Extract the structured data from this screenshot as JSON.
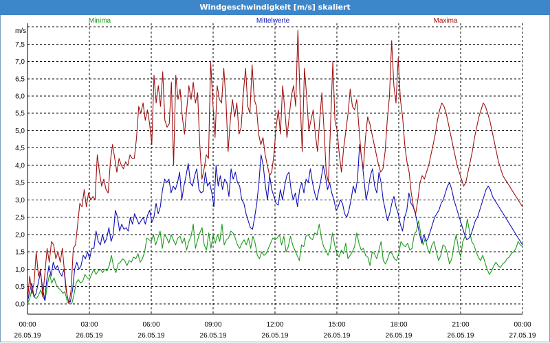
{
  "window": {
    "title": "Windgeschwindigkeit [m/s] skaliert"
  },
  "colors": {
    "minima": "#1a9a1a",
    "mittel": "#1010b8",
    "maxima": "#a01010",
    "titlebar": "#3d86c9"
  },
  "chart_data": {
    "type": "line",
    "title": "Windgeschwindigkeit [m/s] skaliert",
    "ylabel": "m/s",
    "xlabel": "",
    "ylim": [
      -0.3,
      8.1
    ],
    "y_ticks": [
      "0,0",
      "0,5",
      "1,0",
      "1,5",
      "2,0",
      "2,5",
      "3,0",
      "3,5",
      "4,0",
      "4,5",
      "5,0",
      "5,5",
      "6,0",
      "6,5",
      "7,0",
      "7,5"
    ],
    "x_range_hours": [
      0,
      24
    ],
    "x_ticks": [
      {
        "time": "00:00",
        "date": "26.05.19"
      },
      {
        "time": "03:00",
        "date": "26.05.19"
      },
      {
        "time": "06:00",
        "date": "26.05.19"
      },
      {
        "time": "09:00",
        "date": "26.05.19"
      },
      {
        "time": "12:00",
        "date": "26.05.19"
      },
      {
        "time": "15:00",
        "date": "26.05.19"
      },
      {
        "time": "18:00",
        "date": "26.05.19"
      },
      {
        "time": "21:00",
        "date": "26.05.19"
      },
      {
        "time": "00:00",
        "date": "27.05.19"
      }
    ],
    "grid": true,
    "legend_placement": "top",
    "series": [
      {
        "name": "Minima",
        "color": "#1a9a1a",
        "values": [
          0.0,
          0.15,
          0.4,
          0.2,
          0.15,
          0.25,
          0.4,
          0.2,
          0.1,
          0.55,
          0.85,
          0.6,
          0.75,
          0.55,
          0.45,
          0.4,
          0.3,
          0.35,
          0.05,
          0.0,
          0.0,
          0.25,
          0.6,
          0.7,
          0.6,
          0.65,
          0.85,
          0.75,
          0.7,
          0.85,
          1.0,
          0.85,
          0.95,
          1.0,
          0.9,
          1.0,
          0.95,
          1.1,
          1.4,
          1.05,
          0.9,
          1.15,
          1.2,
          1.3,
          1.25,
          1.1,
          1.25,
          1.2,
          1.35,
          1.3,
          1.45,
          1.2,
          1.3,
          1.5,
          1.9,
          1.85,
          1.8,
          2.0,
          1.7,
          1.9,
          2.1,
          1.6,
          2.0,
          1.9,
          1.75,
          2.0,
          1.85,
          1.7,
          1.9,
          1.95,
          1.75,
          1.9,
          1.55,
          1.8,
          1.95,
          2.3,
          1.6,
          1.85,
          2.05,
          2.2,
          1.7,
          1.55,
          2.05,
          1.6,
          2.0,
          1.75,
          2.0,
          1.8,
          2.3,
          1.7,
          1.85,
          1.9,
          2.1,
          2.05,
          1.9,
          1.7,
          1.6,
          1.75,
          1.85,
          1.7,
          1.9,
          1.6,
          1.95,
          1.75,
          1.4,
          1.3,
          1.5,
          1.4,
          1.45,
          1.6,
          1.75,
          1.9,
          1.85,
          1.9,
          2.0,
          1.7,
          1.95,
          1.5,
          1.65,
          1.95,
          1.7,
          1.55,
          1.4,
          1.25,
          1.7,
          1.65,
          1.95,
          2.0,
          1.9,
          1.85,
          2.05,
          2.0,
          2.3,
          1.9,
          1.65,
          1.55,
          1.4,
          1.6,
          2.05,
          1.7,
          1.45,
          1.35,
          1.55,
          1.45,
          1.75,
          1.3,
          1.4,
          1.5,
          1.65,
          2.05,
          1.75,
          1.55,
          1.6,
          1.4,
          1.35,
          1.1,
          1.5,
          1.45,
          1.3,
          1.55,
          1.8,
          1.25,
          1.15,
          1.3,
          1.5,
          1.45,
          1.3,
          1.25,
          1.45,
          1.8,
          1.7,
          1.65,
          1.75,
          1.55,
          1.6,
          2.0,
          2.1,
          2.4,
          2.0,
          1.7,
          1.9,
          1.6,
          1.45,
          1.7,
          1.8,
          1.5,
          1.25,
          1.4,
          1.7,
          1.65,
          1.45,
          1.15,
          1.3,
          1.7,
          2.0,
          1.6,
          1.35,
          1.8,
          1.95,
          2.45,
          2.1,
          1.8,
          1.7,
          1.5,
          1.35,
          1.25,
          1.4,
          1.2,
          1.0,
          0.85,
          0.95,
          1.1,
          1.2,
          1.1,
          1.05,
          1.15,
          1.2,
          1.3,
          1.35,
          1.45,
          1.5,
          1.6,
          1.8,
          1.7,
          1.65
        ]
      },
      {
        "name": "Mittelwerte",
        "color": "#1010b8",
        "values": [
          0.05,
          0.35,
          0.6,
          0.2,
          0.3,
          0.6,
          0.9,
          0.5,
          0.1,
          0.7,
          1.1,
          0.8,
          1.2,
          1.0,
          1.1,
          0.9,
          0.8,
          1.0,
          0.4,
          0.1,
          0.05,
          0.4,
          1.0,
          1.2,
          1.0,
          1.1,
          1.4,
          1.3,
          1.5,
          1.3,
          1.6,
          1.6,
          2.1,
          1.8,
          1.7,
          2.0,
          1.75,
          1.9,
          2.2,
          1.8,
          2.0,
          2.7,
          2.5,
          2.1,
          2.3,
          2.15,
          2.2,
          2.1,
          2.5,
          2.3,
          2.6,
          2.45,
          2.3,
          2.4,
          2.5,
          2.3,
          2.55,
          2.7,
          2.35,
          2.5,
          2.9,
          2.6,
          2.8,
          3.3,
          3.6,
          3.5,
          3.6,
          3.2,
          3.4,
          3.3,
          3.5,
          3.8,
          3.0,
          3.4,
          3.7,
          4.05,
          3.5,
          3.4,
          3.7,
          3.9,
          3.3,
          3.2,
          3.25,
          3.8,
          3.4,
          3.5,
          3.2,
          2.8,
          4.0,
          3.4,
          3.7,
          3.3,
          3.6,
          3.5,
          3.1,
          3.9,
          3.6,
          3.8,
          3.5,
          3.4,
          3.0,
          2.9,
          2.6,
          2.4,
          2.2,
          2.15,
          2.5,
          2.9,
          3.5,
          4.3,
          4.0,
          3.4,
          3.0,
          3.7,
          3.3,
          3.1,
          2.9,
          2.85,
          3.3,
          3.0,
          3.4,
          3.7,
          3.8,
          3.3,
          3.0,
          3.2,
          2.8,
          3.3,
          3.5,
          3.2,
          3.6,
          3.5,
          3.9,
          3.5,
          3.2,
          3.0,
          3.3,
          3.6,
          4.0,
          3.7,
          3.3,
          3.5,
          3.2,
          3.0,
          2.7,
          2.8,
          3.0,
          2.9,
          2.6,
          2.5,
          2.7,
          3.0,
          3.4,
          3.2,
          3.6,
          4.6,
          4.2,
          3.6,
          3.0,
          3.3,
          3.7,
          3.9,
          3.4,
          3.2,
          3.8,
          3.5,
          3.0,
          2.7,
          2.4,
          2.6,
          2.9,
          3.1,
          2.8,
          2.6,
          2.3,
          2.1,
          2.5,
          2.7,
          3.2,
          2.9,
          2.8,
          2.6,
          2.3,
          2.0,
          1.75,
          2.0,
          1.8,
          1.9,
          2.1,
          2.3,
          2.5,
          2.6,
          2.7,
          2.9,
          3.0,
          3.2,
          3.4,
          3.5,
          3.3,
          3.0,
          2.8,
          2.6,
          2.4,
          2.2,
          2.0,
          1.85,
          1.9,
          2.0,
          2.2,
          2.4,
          2.5,
          2.7,
          2.9,
          3.1,
          3.3,
          3.4,
          3.3,
          3.1,
          3.0,
          2.9,
          2.8,
          2.7,
          2.6,
          2.5,
          2.4,
          2.3,
          2.2,
          2.1,
          2.0,
          1.9,
          1.8,
          1.7
        ]
      },
      {
        "name": "Maxima",
        "color": "#a01010",
        "values": [
          0.1,
          0.8,
          0.3,
          0.6,
          1.5,
          0.8,
          1.0,
          0.2,
          0.9,
          1.6,
          1.2,
          1.8,
          1.7,
          1.3,
          1.5,
          1.2,
          1.6,
          0.9,
          0.3,
          0.0,
          0.4,
          1.6,
          1.7,
          2.3,
          2.9,
          2.8,
          3.3,
          2.8,
          3.2,
          3.0,
          3.1,
          3.0,
          4.3,
          3.8,
          3.4,
          3.6,
          3.3,
          3.2,
          4.1,
          4.6,
          4.2,
          3.8,
          4.2,
          4.0,
          3.9,
          4.1,
          4.0,
          4.3,
          4.2,
          4.2,
          4.8,
          5.7,
          5.5,
          5.8,
          5.3,
          5.6,
          5.2,
          4.6,
          6.6,
          5.8,
          6.3,
          5.7,
          6.7,
          5.3,
          5.1,
          5.2,
          6.4,
          4.0,
          6.6,
          5.9,
          6.2,
          5.4,
          4.9,
          5.6,
          6.3,
          5.9,
          6.4,
          5.8,
          6.1,
          4.6,
          3.6,
          3.9,
          4.3,
          4.2,
          7.0,
          5.8,
          4.8,
          6.3,
          5.9,
          5.8,
          6.8,
          5.9,
          4.4,
          5.3,
          5.9,
          5.4,
          5.8,
          4.9,
          5.1,
          6.1,
          6.8,
          5.7,
          5.5,
          6.9,
          5.9,
          5.7,
          4.9,
          4.6,
          4.8,
          4.3,
          4.0,
          3.7,
          3.8,
          4.3,
          5.1,
          5.6,
          4.9,
          6.3,
          5.6,
          4.8,
          5.4,
          6.0,
          6.3,
          5.7,
          7.9,
          5.9,
          4.4,
          6.8,
          6.0,
          5.0,
          5.3,
          5.6,
          4.9,
          4.4,
          5.3,
          6.1,
          5.0,
          3.8,
          3.5,
          5.2,
          7.0,
          5.3,
          5.0,
          4.3,
          3.8,
          4.5,
          5.0,
          5.5,
          6.2,
          5.7,
          5.6,
          5.9,
          5.1,
          4.3,
          3.9,
          4.8,
          5.4,
          5.2,
          4.9,
          4.6,
          4.3,
          4.0,
          3.8,
          3.9,
          4.4,
          5.3,
          6.0,
          7.6,
          6.3,
          5.8,
          7.1,
          5.9,
          5.4,
          4.6,
          4.1,
          3.8,
          3.2,
          2.8,
          2.6,
          3.0,
          3.5,
          3.7,
          3.6,
          3.8,
          4.0,
          4.3,
          4.6,
          4.9,
          5.3,
          5.6,
          5.8,
          5.7,
          5.5,
          5.2,
          4.9,
          4.6,
          4.3,
          4.0,
          3.8,
          3.6,
          3.4,
          3.5,
          3.8,
          4.1,
          4.4,
          4.8,
          5.1,
          5.4,
          5.6,
          5.8,
          5.7,
          5.5,
          5.3,
          5.0,
          4.7,
          4.4,
          4.1,
          3.9,
          3.7,
          3.6,
          3.5,
          3.4,
          3.3,
          3.2,
          3.1,
          3.0,
          2.9,
          2.8
        ]
      }
    ]
  }
}
